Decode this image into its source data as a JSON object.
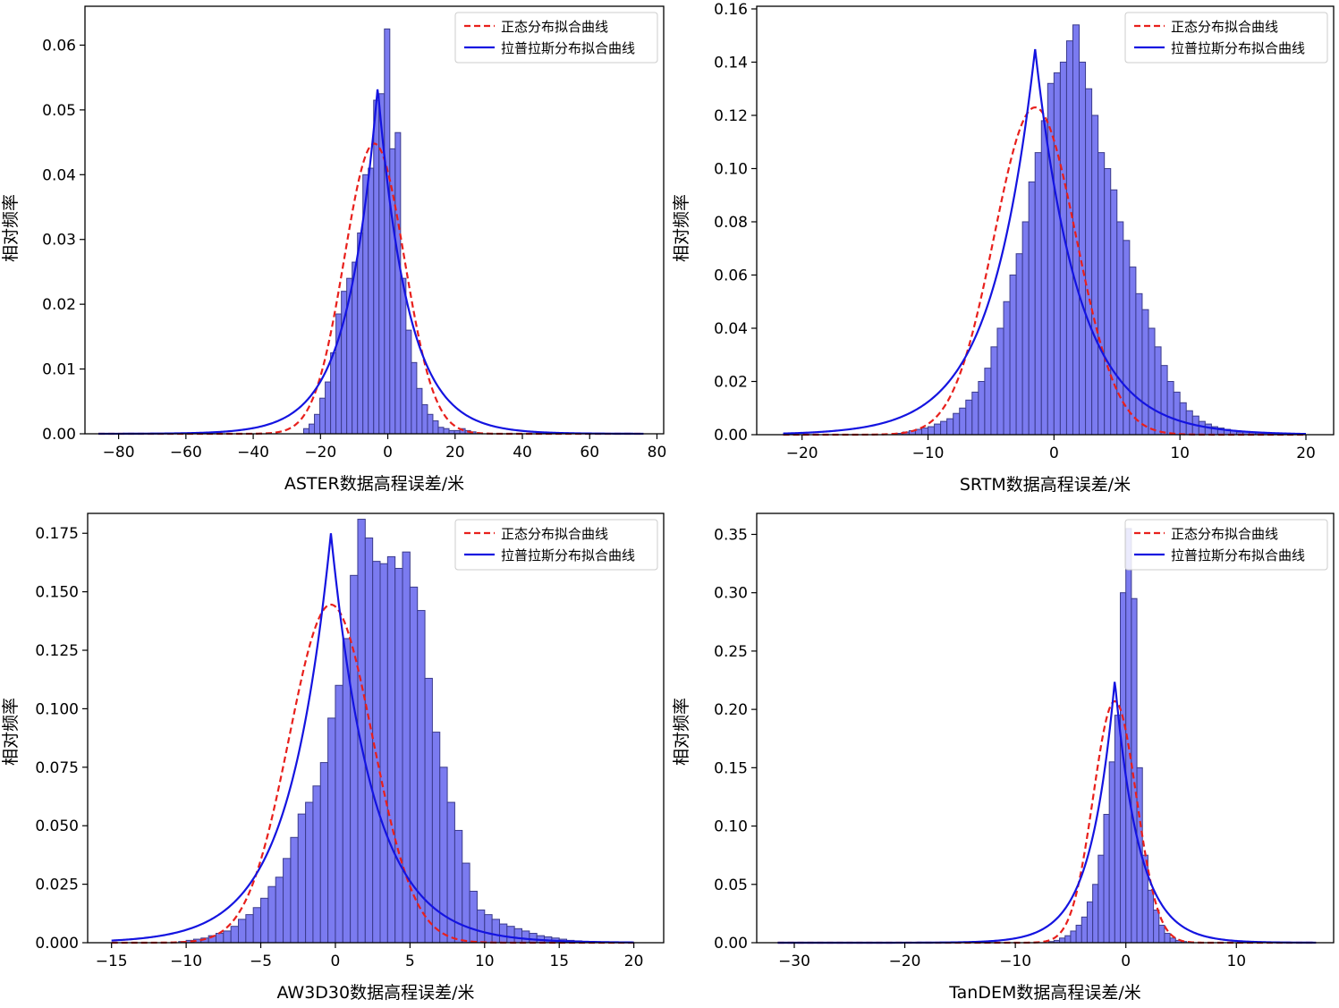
{
  "legend": {
    "normal_label": "正态分布拟合曲线",
    "laplace_label": "拉普拉斯分布拟合曲线"
  },
  "colors": {
    "bar_fill": "#7b7bf0",
    "bar_edge": "#3b3b8c",
    "normal_curve": "#e8201c",
    "laplace_curve": "#1414e0",
    "axes": "#000000"
  },
  "chart_data": [
    {
      "type": "bar",
      "name": "ASTER",
      "xlabel": "ASTER数据高程误差/米",
      "ylabel": "相对频率",
      "xlim": [
        -90,
        82
      ],
      "ylim": [
        0,
        0.066
      ],
      "xticks": [
        -80,
        -60,
        -40,
        -20,
        0,
        20,
        40,
        60,
        80
      ],
      "yticks": [
        0.0,
        0.01,
        0.02,
        0.03,
        0.04,
        0.05,
        0.06
      ],
      "ytick_labels": [
        "0.00",
        "0.01",
        "0.02",
        "0.03",
        "0.04",
        "0.05",
        "0.06"
      ],
      "bin_width": 1.6,
      "bins": {
        "start": -25.0,
        "values": [
          0.0008,
          0.0015,
          0.003,
          0.0055,
          0.008,
          0.0125,
          0.0185,
          0.022,
          0.024,
          0.0265,
          0.031,
          0.04,
          0.041,
          0.0515,
          0.0525,
          0.0625,
          0.044,
          0.0465,
          0.024,
          0.016,
          0.011,
          0.007,
          0.0045,
          0.003,
          0.002,
          0.001,
          0.0008,
          0.0005,
          0.0005,
          0.0008,
          0.0005,
          0.0003
        ]
      },
      "normal_fit": {
        "mu": -4.0,
        "sigma": 8.9,
        "peak": 0.0448
      },
      "laplace_fit": {
        "mu": -3.0,
        "b": 9.0,
        "peak": 0.0535
      },
      "curve_range": [
        -86,
        76
      ],
      "legend_position": "top-right"
    },
    {
      "type": "bar",
      "name": "SRTM",
      "xlabel": "SRTM数据高程误差/米",
      "ylabel": "相对频率",
      "xlim": [
        -23.6,
        22.2
      ],
      "ylim": [
        0,
        0.161
      ],
      "xticks": [
        -20,
        -10,
        0,
        10,
        20
      ],
      "yticks": [
        0.0,
        0.02,
        0.04,
        0.06,
        0.08,
        0.1,
        0.12,
        0.14,
        0.16
      ],
      "ytick_labels": [
        "0.00",
        "0.02",
        "0.04",
        "0.06",
        "0.08",
        "0.10",
        "0.12",
        "0.14",
        "0.16"
      ],
      "bin_width": 0.5,
      "bins": {
        "start": -12.5,
        "values": [
          0.0005,
          0.001,
          0.0015,
          0.002,
          0.0025,
          0.003,
          0.004,
          0.005,
          0.006,
          0.008,
          0.01,
          0.013,
          0.016,
          0.02,
          0.025,
          0.033,
          0.04,
          0.05,
          0.06,
          0.068,
          0.08,
          0.095,
          0.106,
          0.118,
          0.132,
          0.136,
          0.14,
          0.148,
          0.154,
          0.14,
          0.13,
          0.12,
          0.106,
          0.1,
          0.092,
          0.08,
          0.073,
          0.063,
          0.053,
          0.047,
          0.04,
          0.033,
          0.026,
          0.02,
          0.016,
          0.012,
          0.009,
          0.007,
          0.005,
          0.004,
          0.003,
          0.0025,
          0.002,
          0.0015,
          0.001,
          0.001,
          0.0008,
          0.0006,
          0.0005,
          0.0004,
          0.0003
        ]
      },
      "normal_fit": {
        "mu": -1.5,
        "sigma": 3.25,
        "peak": 0.123
      },
      "laplace_fit": {
        "mu": -1.5,
        "b": 3.45,
        "peak": 0.145
      },
      "curve_range": [
        -21.5,
        20
      ],
      "legend_position": "top-right"
    },
    {
      "type": "bar",
      "name": "AW3D30",
      "xlabel": "AW3D30数据高程误差/米",
      "ylabel": "相对频率",
      "xlim": [
        -16.6,
        22.0
      ],
      "ylim": [
        0,
        0.1835
      ],
      "xticks": [
        -15,
        -10,
        -5,
        0,
        5,
        10,
        15,
        20
      ],
      "yticks": [
        0.0,
        0.025,
        0.05,
        0.075,
        0.1,
        0.125,
        0.15,
        0.175
      ],
      "ytick_labels": [
        "0.000",
        "0.025",
        "0.050",
        "0.075",
        "0.100",
        "0.125",
        "0.150",
        "0.175"
      ],
      "bin_width": 0.5,
      "bins": {
        "start": -10.5,
        "values": [
          0.0005,
          0.001,
          0.0015,
          0.002,
          0.003,
          0.004,
          0.005,
          0.007,
          0.01,
          0.012,
          0.015,
          0.019,
          0.024,
          0.028,
          0.036,
          0.045,
          0.055,
          0.06,
          0.067,
          0.077,
          0.096,
          0.11,
          0.13,
          0.157,
          0.181,
          0.173,
          0.163,
          0.162,
          0.165,
          0.16,
          0.167,
          0.152,
          0.142,
          0.113,
          0.09,
          0.075,
          0.06,
          0.048,
          0.034,
          0.022,
          0.014,
          0.012,
          0.01,
          0.008,
          0.007,
          0.006,
          0.005,
          0.004,
          0.003,
          0.0025,
          0.002,
          0.0015,
          0.001,
          0.0008,
          0.0006,
          0.0005
        ]
      },
      "normal_fit": {
        "mu": -0.3,
        "sigma": 2.8,
        "peak": 0.1445
      },
      "laplace_fit": {
        "mu": -0.3,
        "b": 2.8,
        "peak": 0.175
      },
      "curve_range": [
        -15,
        20
      ],
      "legend_position": "top-right"
    },
    {
      "type": "bar",
      "name": "TanDEM",
      "xlabel": "TanDEM数据高程误差/米",
      "ylabel": "相对频率",
      "xlim": [
        -33.4,
        18.8
      ],
      "ylim": [
        0,
        0.368
      ],
      "xticks": [
        -30,
        -20,
        -10,
        0,
        10
      ],
      "yticks": [
        0.0,
        0.05,
        0.1,
        0.15,
        0.2,
        0.25,
        0.3,
        0.35
      ],
      "ytick_labels": [
        "0.00",
        "0.05",
        "0.10",
        "0.15",
        "0.20",
        "0.25",
        "0.30",
        "0.35"
      ],
      "bin_width": 0.5,
      "bins": {
        "start": -7.0,
        "values": [
          0.001,
          0.002,
          0.004,
          0.006,
          0.01,
          0.015,
          0.022,
          0.035,
          0.05,
          0.075,
          0.11,
          0.155,
          0.195,
          0.3,
          0.355,
          0.295,
          0.15,
          0.075,
          0.045,
          0.028,
          0.015,
          0.008,
          0.004,
          0.002,
          0.001
        ]
      },
      "normal_fit": {
        "mu": -1.0,
        "sigma": 1.95,
        "peak": 0.207
      },
      "laplace_fit": {
        "mu": -1.0,
        "b": 2.2,
        "peak": 0.225
      },
      "curve_range": [
        -31.5,
        17.2
      ],
      "legend_position": "top-right"
    }
  ]
}
